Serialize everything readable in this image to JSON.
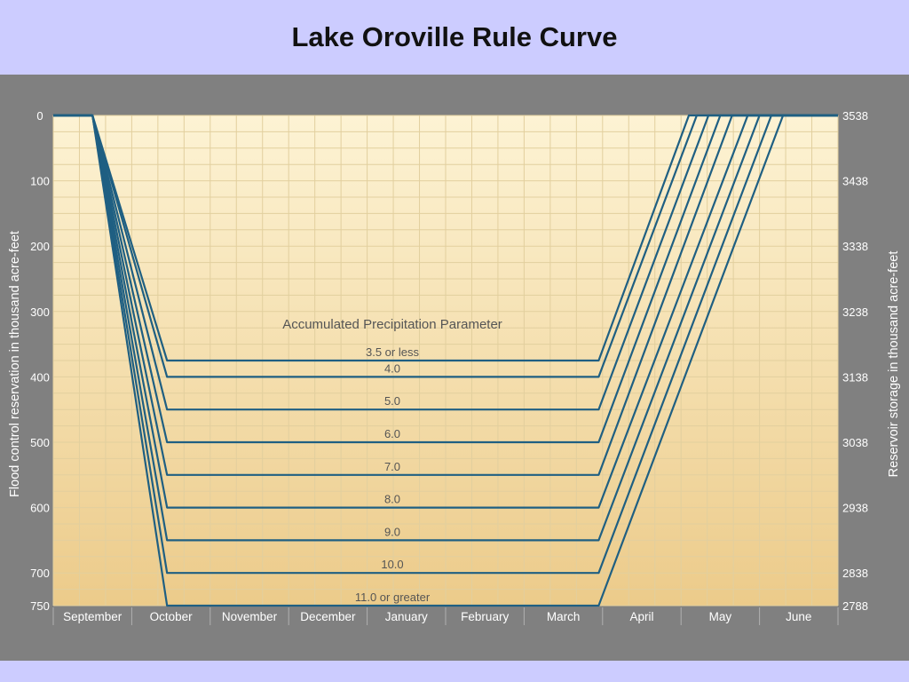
{
  "slide": {
    "title": "Lake Oroville Rule Curve"
  },
  "colors": {
    "band": "#ccccff",
    "panel": "#808080",
    "plot_top": "#fdf3d4",
    "plot_bottom": "#eccb8a",
    "grid": "#e2cf9e",
    "curve": "#1f5f82"
  },
  "chart_data": {
    "type": "line",
    "title": "",
    "xlabel": "",
    "ylabel_left": "Flood control reservation in thousand acre-feet",
    "ylabel_right": "Reservoir storage in thousand acre-feet",
    "parameter_title": "Accumulated Precipitation Parameter",
    "months": [
      "September",
      "October",
      "November",
      "December",
      "January",
      "February",
      "March",
      "April",
      "May",
      "June"
    ],
    "y_left_ticks": [
      "0",
      "100",
      "200",
      "300",
      "400",
      "500",
      "600",
      "700",
      "750"
    ],
    "y_right_ticks": [
      "3538",
      "3438",
      "3338",
      "3238",
      "3138",
      "3038",
      "2938",
      "2838",
      "2788"
    ],
    "ylim_left": [
      0,
      750
    ],
    "ylim_right": [
      3538,
      2788
    ],
    "x_unit": "months from start of September",
    "xlim": [
      0,
      10
    ],
    "grid": true,
    "series": [
      {
        "name": "3.5 or less",
        "reservation": 375,
        "points": [
          [
            0,
            0
          ],
          [
            0.5,
            0
          ],
          [
            1.45,
            375
          ],
          [
            6.95,
            375
          ],
          [
            8.1,
            0
          ],
          [
            10,
            0
          ]
        ]
      },
      {
        "name": "4.0",
        "reservation": 400,
        "points": [
          [
            0,
            0
          ],
          [
            0.5,
            0
          ],
          [
            1.45,
            400
          ],
          [
            6.95,
            400
          ],
          [
            8.2,
            0
          ],
          [
            10,
            0
          ]
        ]
      },
      {
        "name": "5.0",
        "reservation": 450,
        "points": [
          [
            0,
            0
          ],
          [
            0.5,
            0
          ],
          [
            1.45,
            450
          ],
          [
            6.95,
            450
          ],
          [
            8.35,
            0
          ],
          [
            10,
            0
          ]
        ]
      },
      {
        "name": "6.0",
        "reservation": 500,
        "points": [
          [
            0,
            0
          ],
          [
            0.5,
            0
          ],
          [
            1.45,
            500
          ],
          [
            6.95,
            500
          ],
          [
            8.5,
            0
          ],
          [
            10,
            0
          ]
        ]
      },
      {
        "name": "7.0",
        "reservation": 550,
        "points": [
          [
            0,
            0
          ],
          [
            0.5,
            0
          ],
          [
            1.45,
            550
          ],
          [
            6.95,
            550
          ],
          [
            8.65,
            0
          ],
          [
            10,
            0
          ]
        ]
      },
      {
        "name": "8.0",
        "reservation": 600,
        "points": [
          [
            0,
            0
          ],
          [
            0.5,
            0
          ],
          [
            1.45,
            600
          ],
          [
            6.95,
            600
          ],
          [
            8.85,
            0
          ],
          [
            10,
            0
          ]
        ]
      },
      {
        "name": "9.0",
        "reservation": 650,
        "points": [
          [
            0,
            0
          ],
          [
            0.5,
            0
          ],
          [
            1.45,
            650
          ],
          [
            6.95,
            650
          ],
          [
            9.0,
            0
          ],
          [
            10,
            0
          ]
        ]
      },
      {
        "name": "10.0",
        "reservation": 700,
        "points": [
          [
            0,
            0
          ],
          [
            0.5,
            0
          ],
          [
            1.45,
            700
          ],
          [
            6.95,
            700
          ],
          [
            9.15,
            0
          ],
          [
            10,
            0
          ]
        ]
      },
      {
        "name": "11.0 or greater",
        "reservation": 750,
        "points": [
          [
            0,
            0
          ],
          [
            0.5,
            0
          ],
          [
            1.45,
            750
          ],
          [
            6.95,
            750
          ],
          [
            9.3,
            0
          ],
          [
            10,
            0
          ]
        ]
      }
    ]
  }
}
